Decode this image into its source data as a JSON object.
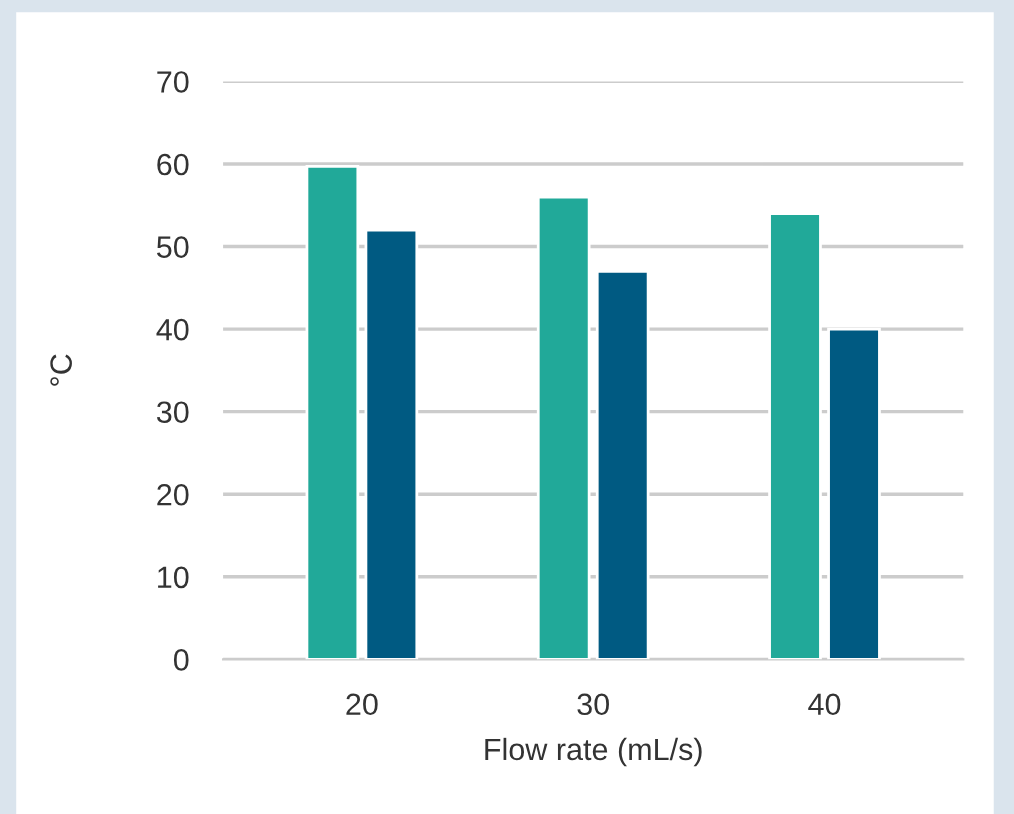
{
  "chart_data": {
    "type": "bar",
    "xlabel": "Flow rate (mL/s)",
    "ylabel": "°C",
    "categories": [
      "20",
      "30",
      "40"
    ],
    "series": [
      {
        "color": "#21a999",
        "values": [
          59.7,
          56,
          54
        ]
      },
      {
        "color": "#005a82",
        "values": [
          52,
          47,
          40
        ]
      }
    ],
    "ylim": [
      0,
      70
    ],
    "yticks": [
      0,
      10,
      20,
      30,
      40,
      50,
      60,
      70
    ],
    "grid": "y",
    "legend": false
  }
}
